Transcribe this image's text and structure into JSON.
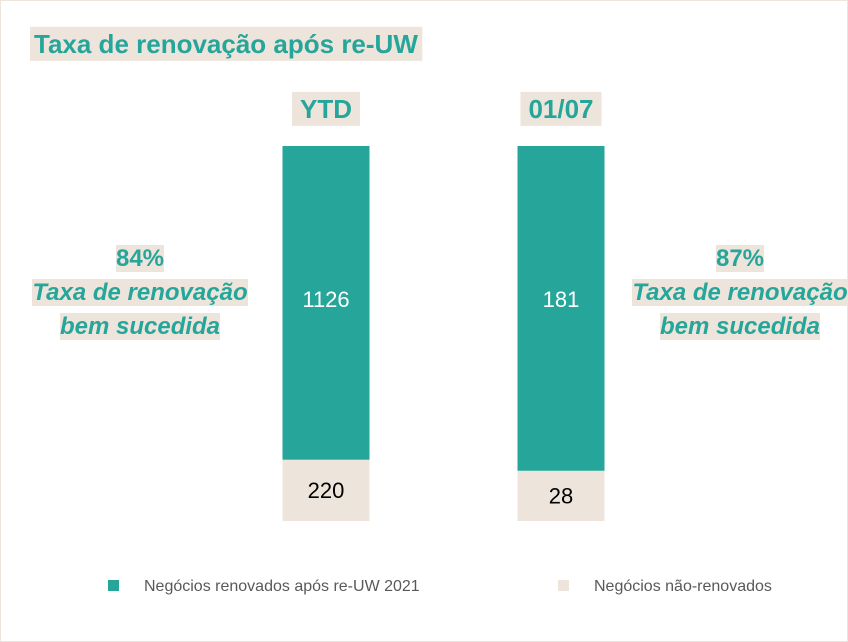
{
  "chart_data": {
    "type": "bar",
    "stacked_percent": true,
    "title": "Taxa de renovação após re-UW",
    "categories": [
      "YTD",
      "01/07"
    ],
    "series": [
      {
        "name": "Negócios renovados após re-UW 2021",
        "color": "#26a69a",
        "values": [
          1126,
          181
        ]
      },
      {
        "name": "Negócios não-renovados",
        "color": "#ede5db",
        "values": [
          220,
          28
        ]
      }
    ],
    "annotations": [
      {
        "label": "84%",
        "text": "Taxa de renovação bem sucedida"
      },
      {
        "label": "87%",
        "text": "Taxa de renovação bem sucedida"
      }
    ]
  }
}
